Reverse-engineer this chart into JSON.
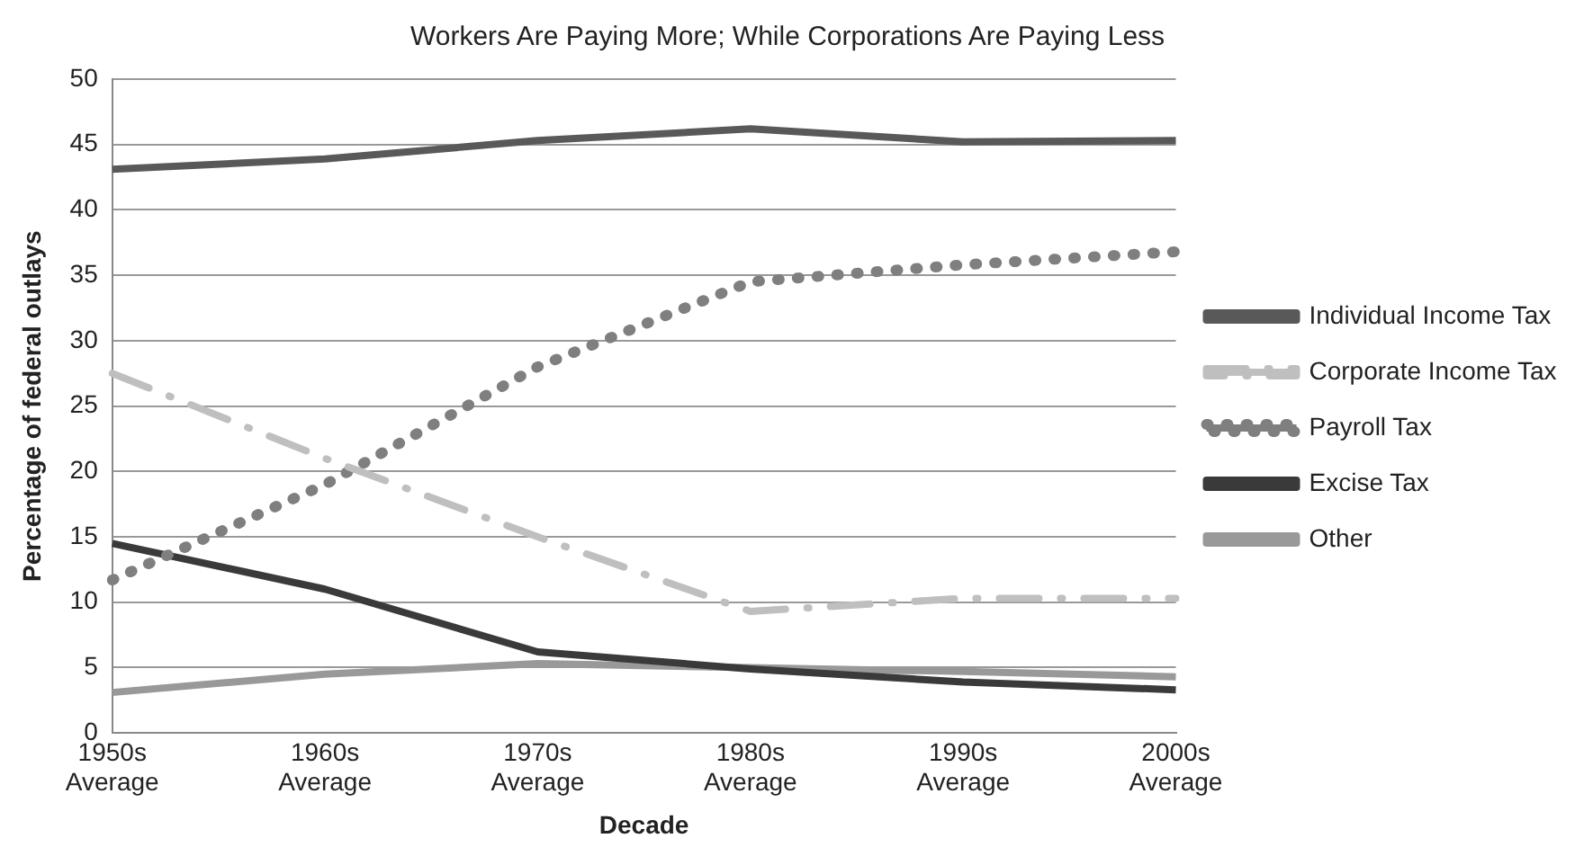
{
  "chart_data": {
    "type": "line",
    "title": "Workers Are Paying More; While Corporations Are Paying Less",
    "xlabel": "Decade",
    "ylabel": "Percentage of federal outlays",
    "categories": [
      "1950s Average",
      "1960s Average",
      "1970s Average",
      "1980s Average",
      "1990s Average",
      "2000s Average"
    ],
    "series": [
      {
        "name": "Individual Income Tax",
        "color": "#595959",
        "line_style": "solid",
        "values": [
          43.1,
          43.9,
          45.3,
          46.2,
          45.2,
          45.3
        ]
      },
      {
        "name": "Corporate Income Tax",
        "color": "#bfbfbf",
        "line_style": "dashdot",
        "values": [
          27.5,
          21,
          15,
          9.3,
          10.3,
          10.3
        ]
      },
      {
        "name": "Payroll Tax",
        "color": "#7f7f7f",
        "line_style": "dotted",
        "values": [
          11.7,
          19,
          28,
          34.5,
          35.8,
          36.8
        ]
      },
      {
        "name": "Excise Tax",
        "color": "#3a3a3a",
        "line_style": "solid",
        "values": [
          14.5,
          11,
          6.2,
          4.9,
          3.9,
          3.3
        ]
      },
      {
        "name": "Other",
        "color": "#999999",
        "line_style": "solid",
        "values": [
          3.1,
          4.5,
          5.3,
          5,
          4.7,
          4.3
        ]
      }
    ],
    "ylim": [
      0,
      50
    ],
    "yticks": [
      0,
      5,
      10,
      15,
      20,
      25,
      30,
      35,
      40,
      45,
      50
    ],
    "grid": "y",
    "legend": "right",
    "marker": "none"
  }
}
